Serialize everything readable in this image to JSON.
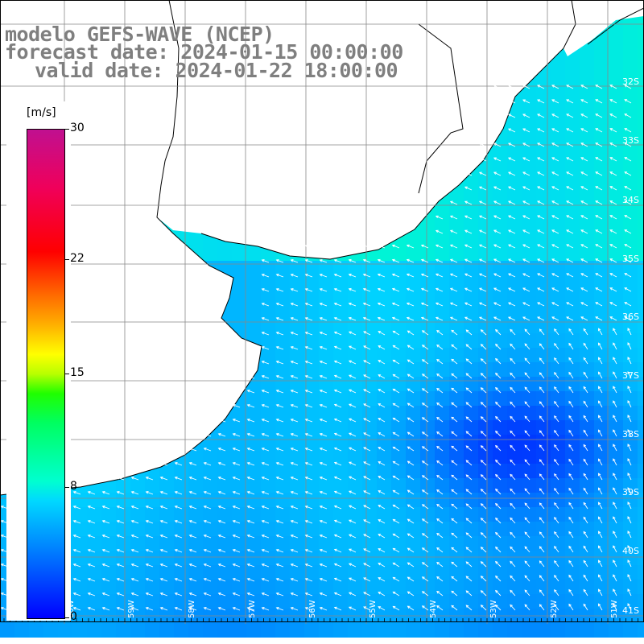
{
  "title": {
    "line1": "modelo GEFS-WAVE (NCEP)",
    "line2": "forecast date: 2024-01-15 00:00:00",
    "line3": "valid date: 2024-01-22 18:00:00"
  },
  "colorbar": {
    "unit": "[m/s]",
    "ticks": [
      "30",
      "22",
      "15",
      "8",
      "0"
    ],
    "tick_values": [
      30,
      22,
      15,
      8,
      0
    ],
    "colors_low_to_high": [
      "#0000ff",
      "#0077ff",
      "#00d8ff",
      "#00ffd0",
      "#00ff60",
      "#20ff00",
      "#b8ff00",
      "#ffff00",
      "#ffb000",
      "#ff6000",
      "#ff0000",
      "#f0005a",
      "#c01090"
    ]
  },
  "lat_labels": [
    "32S",
    "33S",
    "34S",
    "35S",
    "36S",
    "37S",
    "38S",
    "39S",
    "40S",
    "41S"
  ],
  "lon_labels": [
    "61W",
    "60W",
    "59W",
    "58W",
    "57W",
    "56W",
    "55W",
    "54W",
    "53W",
    "52W",
    "51W"
  ],
  "map": {
    "land_color": "#ffffff",
    "coast_color": "#000000",
    "grid_color": "#888888",
    "vector_color": "#ffffff",
    "field_note": "wind speed field, predominant flow from the east / northeast"
  }
}
